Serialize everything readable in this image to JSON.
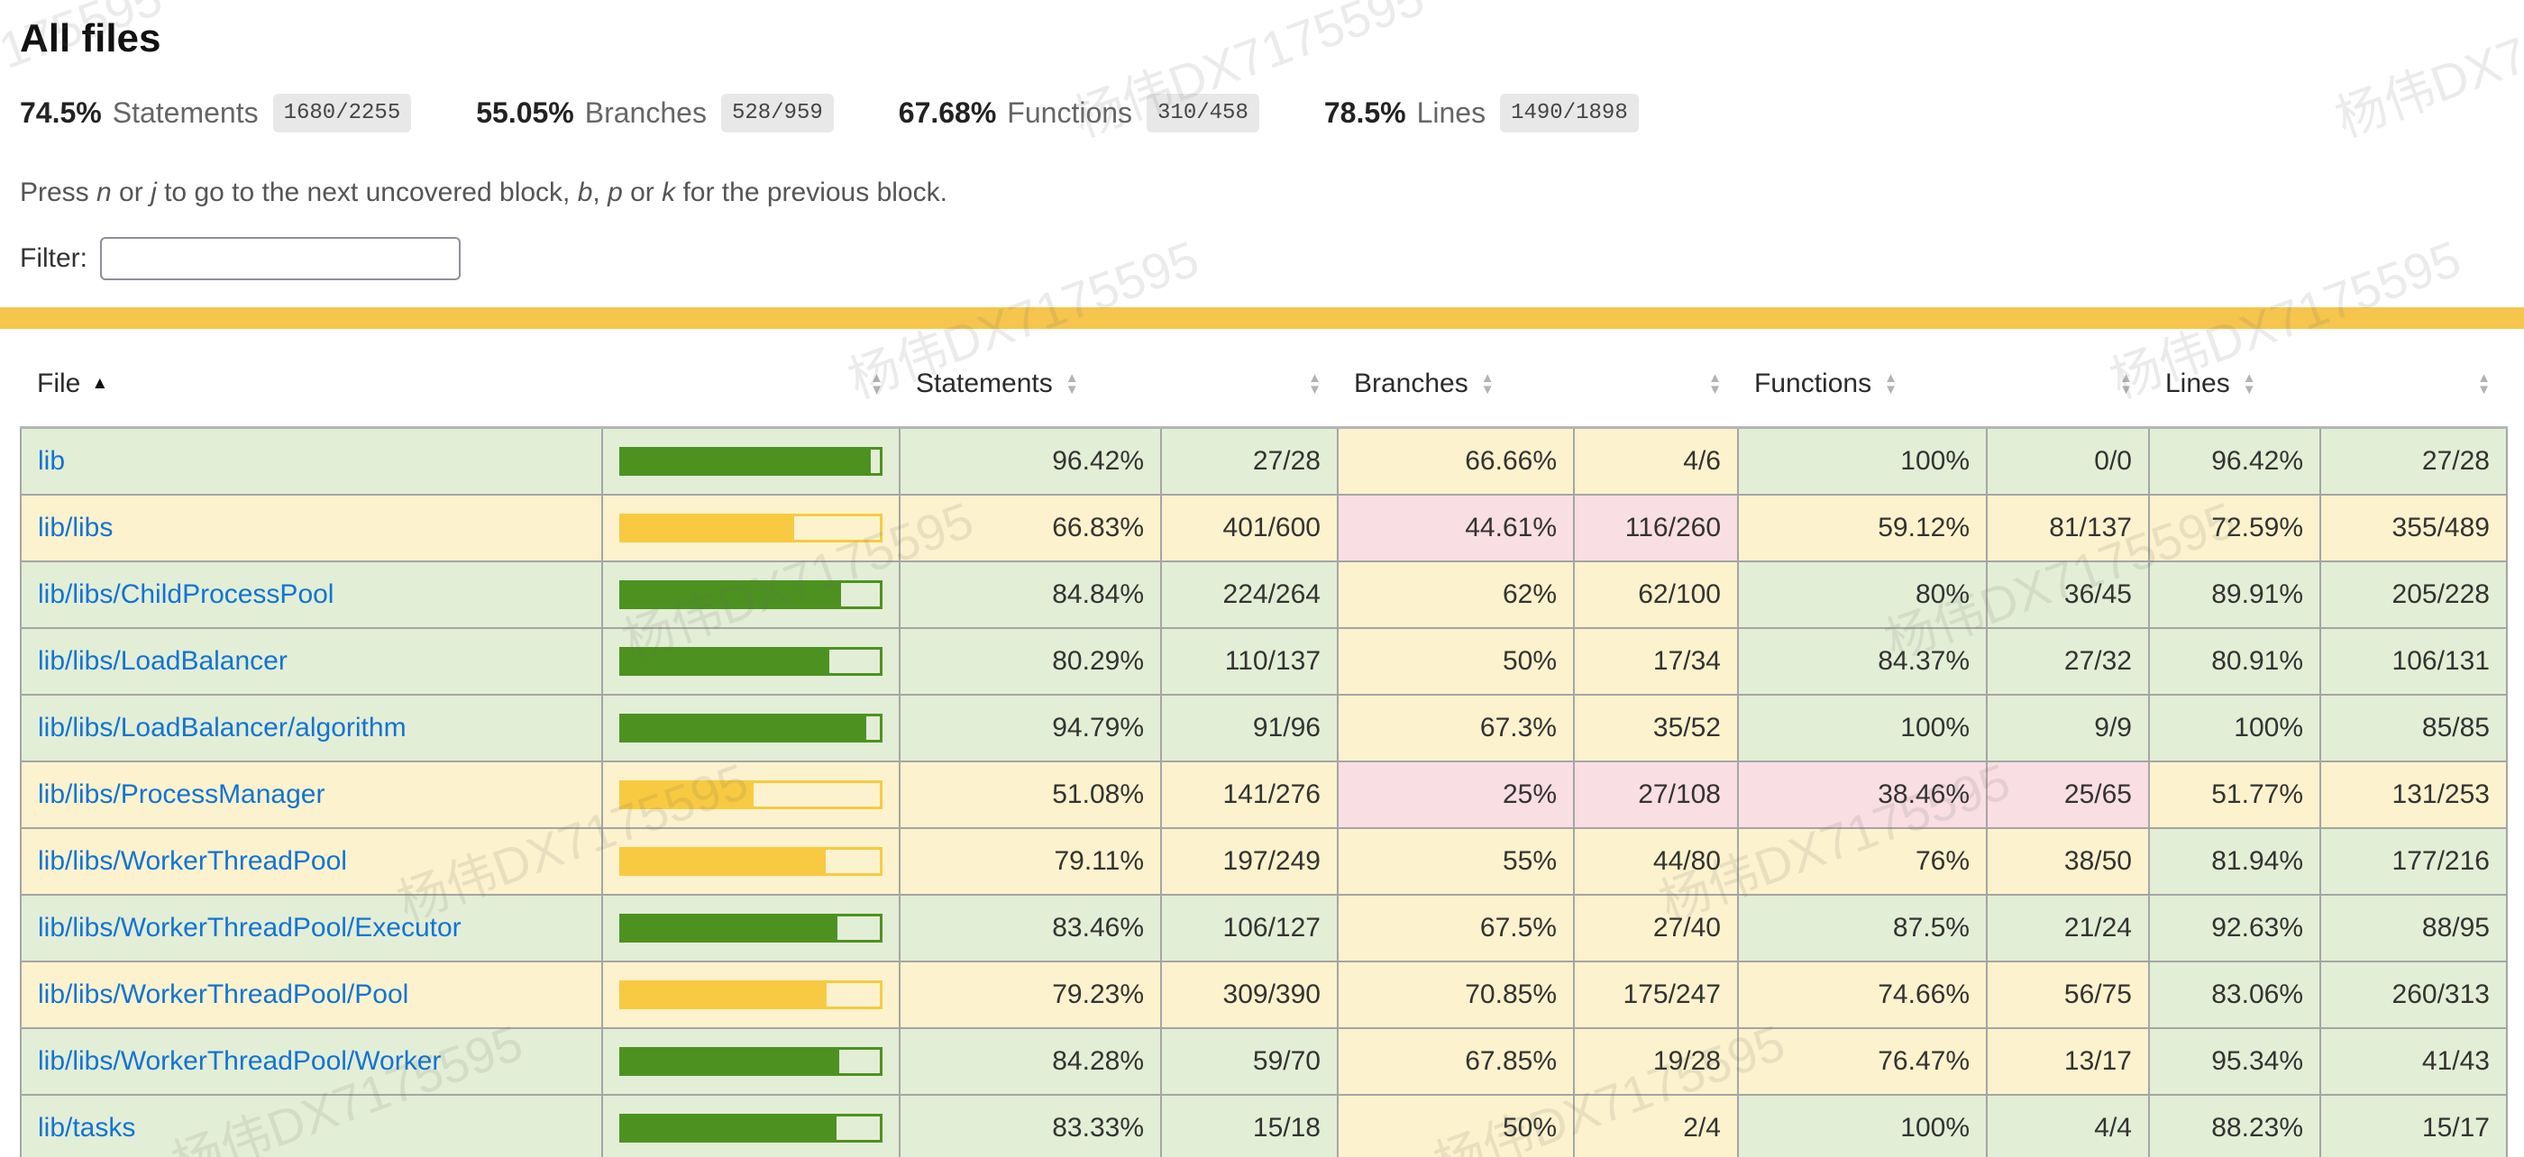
{
  "header": {
    "title": "All files"
  },
  "summary": [
    {
      "pct": "74.5%",
      "label": "Statements",
      "fraction": "1680/2255"
    },
    {
      "pct": "55.05%",
      "label": "Branches",
      "fraction": "528/959"
    },
    {
      "pct": "67.68%",
      "label": "Functions",
      "fraction": "310/458"
    },
    {
      "pct": "78.5%",
      "label": "Lines",
      "fraction": "1490/1898"
    }
  ],
  "hint": {
    "segments": [
      {
        "text": "Press "
      },
      {
        "text": "n",
        "italic": true
      },
      {
        "text": " or "
      },
      {
        "text": "j",
        "italic": true
      },
      {
        "text": " to go to the next uncovered block, "
      },
      {
        "text": "b",
        "italic": true
      },
      {
        "text": ", "
      },
      {
        "text": "p",
        "italic": true
      },
      {
        "text": " or "
      },
      {
        "text": "k",
        "italic": true
      },
      {
        "text": " for the previous block."
      }
    ]
  },
  "filter": {
    "label": "Filter:",
    "value": "",
    "placeholder": ""
  },
  "table": {
    "columns": [
      {
        "label": "File",
        "type": "file",
        "sort": "asc"
      },
      {
        "label": "",
        "type": "chart",
        "sort": "both"
      },
      {
        "label": "Statements",
        "type": "pct",
        "sort": "both"
      },
      {
        "label": "",
        "type": "abs",
        "sort": "both"
      },
      {
        "label": "Branches",
        "type": "pct",
        "sort": "both"
      },
      {
        "label": "",
        "type": "abs",
        "sort": "both"
      },
      {
        "label": "Functions",
        "type": "pct",
        "sort": "both"
      },
      {
        "label": "",
        "type": "abs",
        "sort": "both"
      },
      {
        "label": "Lines",
        "type": "pct",
        "sort": "both"
      },
      {
        "label": "",
        "type": "abs",
        "sort": "both"
      }
    ],
    "rows": [
      {
        "file": "lib",
        "level": "high",
        "bar_pct": 96.42,
        "statements": {
          "pct": "96.42%",
          "abs": "27/28",
          "level": "high"
        },
        "branches": {
          "pct": "66.66%",
          "abs": "4/6",
          "level": "medium"
        },
        "functions": {
          "pct": "100%",
          "abs": "0/0",
          "level": "high"
        },
        "lines": {
          "pct": "96.42%",
          "abs": "27/28",
          "level": "high"
        }
      },
      {
        "file": "lib/libs",
        "level": "medium",
        "bar_pct": 66.83,
        "statements": {
          "pct": "66.83%",
          "abs": "401/600",
          "level": "medium"
        },
        "branches": {
          "pct": "44.61%",
          "abs": "116/260",
          "level": "low"
        },
        "functions": {
          "pct": "59.12%",
          "abs": "81/137",
          "level": "medium"
        },
        "lines": {
          "pct": "72.59%",
          "abs": "355/489",
          "level": "medium"
        }
      },
      {
        "file": "lib/libs/ChildProcessPool",
        "level": "high",
        "bar_pct": 84.84,
        "statements": {
          "pct": "84.84%",
          "abs": "224/264",
          "level": "high"
        },
        "branches": {
          "pct": "62%",
          "abs": "62/100",
          "level": "medium"
        },
        "functions": {
          "pct": "80%",
          "abs": "36/45",
          "level": "high"
        },
        "lines": {
          "pct": "89.91%",
          "abs": "205/228",
          "level": "high"
        }
      },
      {
        "file": "lib/libs/LoadBalancer",
        "level": "high",
        "bar_pct": 80.29,
        "statements": {
          "pct": "80.29%",
          "abs": "110/137",
          "level": "high"
        },
        "branches": {
          "pct": "50%",
          "abs": "17/34",
          "level": "medium"
        },
        "functions": {
          "pct": "84.37%",
          "abs": "27/32",
          "level": "high"
        },
        "lines": {
          "pct": "80.91%",
          "abs": "106/131",
          "level": "high"
        }
      },
      {
        "file": "lib/libs/LoadBalancer/algorithm",
        "level": "high",
        "bar_pct": 94.79,
        "statements": {
          "pct": "94.79%",
          "abs": "91/96",
          "level": "high"
        },
        "branches": {
          "pct": "67.3%",
          "abs": "35/52",
          "level": "medium"
        },
        "functions": {
          "pct": "100%",
          "abs": "9/9",
          "level": "high"
        },
        "lines": {
          "pct": "100%",
          "abs": "85/85",
          "level": "high"
        }
      },
      {
        "file": "lib/libs/ProcessManager",
        "level": "medium",
        "bar_pct": 51.08,
        "statements": {
          "pct": "51.08%",
          "abs": "141/276",
          "level": "medium"
        },
        "branches": {
          "pct": "25%",
          "abs": "27/108",
          "level": "low"
        },
        "functions": {
          "pct": "38.46%",
          "abs": "25/65",
          "level": "low"
        },
        "lines": {
          "pct": "51.77%",
          "abs": "131/253",
          "level": "medium"
        }
      },
      {
        "file": "lib/libs/WorkerThreadPool",
        "level": "medium",
        "bar_pct": 79.11,
        "statements": {
          "pct": "79.11%",
          "abs": "197/249",
          "level": "medium"
        },
        "branches": {
          "pct": "55%",
          "abs": "44/80",
          "level": "medium"
        },
        "functions": {
          "pct": "76%",
          "abs": "38/50",
          "level": "medium"
        },
        "lines": {
          "pct": "81.94%",
          "abs": "177/216",
          "level": "high"
        }
      },
      {
        "file": "lib/libs/WorkerThreadPool/Executor",
        "level": "high",
        "bar_pct": 83.46,
        "statements": {
          "pct": "83.46%",
          "abs": "106/127",
          "level": "high"
        },
        "branches": {
          "pct": "67.5%",
          "abs": "27/40",
          "level": "medium"
        },
        "functions": {
          "pct": "87.5%",
          "abs": "21/24",
          "level": "high"
        },
        "lines": {
          "pct": "92.63%",
          "abs": "88/95",
          "level": "high"
        }
      },
      {
        "file": "lib/libs/WorkerThreadPool/Pool",
        "level": "medium",
        "bar_pct": 79.23,
        "statements": {
          "pct": "79.23%",
          "abs": "309/390",
          "level": "medium"
        },
        "branches": {
          "pct": "70.85%",
          "abs": "175/247",
          "level": "medium"
        },
        "functions": {
          "pct": "74.66%",
          "abs": "56/75",
          "level": "medium"
        },
        "lines": {
          "pct": "83.06%",
          "abs": "260/313",
          "level": "high"
        }
      },
      {
        "file": "lib/libs/WorkerThreadPool/Worker",
        "level": "high",
        "bar_pct": 84.28,
        "statements": {
          "pct": "84.28%",
          "abs": "59/70",
          "level": "high"
        },
        "branches": {
          "pct": "67.85%",
          "abs": "19/28",
          "level": "medium"
        },
        "functions": {
          "pct": "76.47%",
          "abs": "13/17",
          "level": "medium"
        },
        "lines": {
          "pct": "95.34%",
          "abs": "41/43",
          "level": "high"
        }
      },
      {
        "file": "lib/tasks",
        "level": "high",
        "bar_pct": 83.33,
        "statements": {
          "pct": "83.33%",
          "abs": "15/18",
          "level": "high"
        },
        "branches": {
          "pct": "50%",
          "abs": "2/4",
          "level": "medium"
        },
        "functions": {
          "pct": "100%",
          "abs": "4/4",
          "level": "high"
        },
        "lines": {
          "pct": "88.23%",
          "abs": "15/17",
          "level": "high"
        }
      }
    ]
  },
  "watermark": {
    "text": "杨伟DX7175595"
  },
  "colors": {
    "high_bg": "#e3eed6",
    "medium_bg": "#fcf2cd",
    "low_bg": "#f9dee4",
    "bar_green": "#4d9221",
    "bar_yellow": "#f8ca42",
    "divider": "#f5c54d",
    "link": "#1174d4",
    "badge_bg": "#e8e8e8"
  }
}
